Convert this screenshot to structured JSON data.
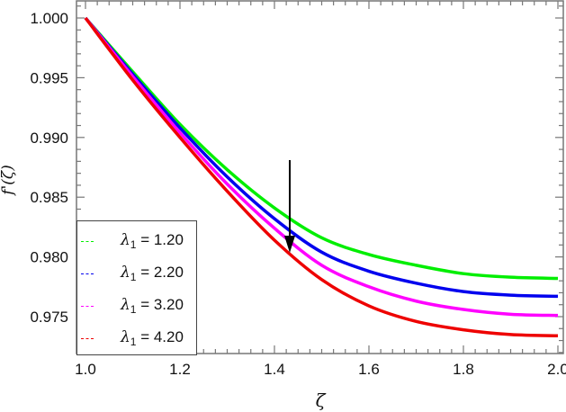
{
  "chart_data": {
    "type": "line",
    "title": "",
    "xlabel": "ζ",
    "ylabel": "f'(ζ)",
    "xlim": [
      1.0,
      2.0
    ],
    "ylim": [
      0.9725,
      1.0015
    ],
    "x_ticks": [
      "1.0",
      "1.2",
      "1.4",
      "1.6",
      "1.8",
      "2.0"
    ],
    "y_ticks": [
      "1.000",
      "0.995",
      "0.990",
      "0.985",
      "0.980",
      "0.975"
    ],
    "grid": false,
    "legend_position": "lower-left",
    "annotation": "downward arrow at ζ≈1.44 indicating f'(ζ) decreases as λ1 increases",
    "x": [
      1.0,
      1.1,
      1.2,
      1.3,
      1.4,
      1.5,
      1.6,
      1.7,
      1.8,
      1.9,
      2.0
    ],
    "series": [
      {
        "name": "λ1 = 1.20",
        "color": "#00ee00",
        "values": [
          1.0,
          0.9955,
          0.9911,
          0.9873,
          0.9841,
          0.9816,
          0.9802,
          0.9793,
          0.9786,
          0.9783,
          0.9782
        ]
      },
      {
        "name": "λ1 = 2.20",
        "color": "#0000ee",
        "values": [
          1.0,
          0.9953,
          0.9908,
          0.9867,
          0.9832,
          0.9804,
          0.9788,
          0.9778,
          0.9771,
          0.9768,
          0.9767
        ]
      },
      {
        "name": "λ1 = 3.20",
        "color": "#ff00ff",
        "values": [
          1.0,
          0.9951,
          0.9904,
          0.9861,
          0.9824,
          0.9793,
          0.9775,
          0.9763,
          0.9756,
          0.9752,
          0.9751
        ]
      },
      {
        "name": "λ1 = 4.20",
        "color": "#ee0000",
        "values": [
          1.0,
          0.9948,
          0.99,
          0.9855,
          0.9814,
          0.9781,
          0.9759,
          0.9746,
          0.9739,
          0.9735,
          0.9734
        ]
      }
    ]
  },
  "legend": {
    "items": [
      {
        "symbol": "λ",
        "sub": "1",
        "text": " = 1.20",
        "color": "#00ee00"
      },
      {
        "symbol": "λ",
        "sub": "1",
        "text": " = 2.20",
        "color": "#0000ee"
      },
      {
        "symbol": "λ",
        "sub": "1",
        "text": " = 3.20",
        "color": "#ff00ff"
      },
      {
        "symbol": "λ",
        "sub": "1",
        "text": " = 4.20",
        "color": "#ee0000"
      }
    ]
  }
}
